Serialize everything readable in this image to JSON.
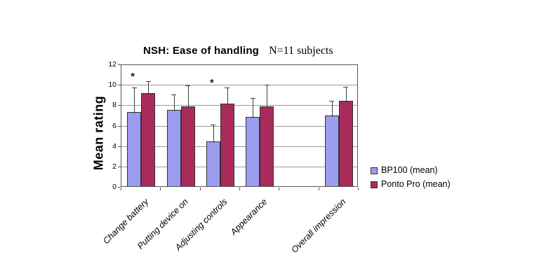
{
  "chart_data": {
    "type": "bar",
    "title": "NSH: Ease of handling",
    "subtitle": "N=11 subjects",
    "ylabel": "Mean rating",
    "ylim": [
      0,
      12
    ],
    "ytick_step": 2,
    "grid": true,
    "legend_position": "right",
    "categories": [
      "Change battery",
      "Putting device on",
      "Adjusting controls",
      "Appearance",
      "Overall impression"
    ],
    "num_slots": 6,
    "slot_of_category": [
      0,
      1,
      2,
      3,
      5
    ],
    "series": [
      {
        "name": "BP100 (mean)",
        "color": "#9C9CF0",
        "values": [
          7.3,
          7.5,
          4.4,
          6.8,
          6.9
        ],
        "error_top": [
          9.8,
          9.1,
          6.2,
          8.8,
          8.5
        ]
      },
      {
        "name": "Ponto Pro (mean)",
        "color": "#A82B5C",
        "values": [
          9.1,
          7.8,
          8.1,
          7.8,
          8.4
        ],
        "error_top": [
          10.4,
          10.0,
          9.8,
          10.1,
          9.9
        ]
      }
    ],
    "significance": {
      "symbol": "*",
      "category_indices": [
        0,
        2
      ],
      "marked_series": "Ponto Pro (mean)"
    }
  },
  "colors": {
    "background": "#FFFFFF",
    "plot_frame": "#555555",
    "gridline": "#9B9B9B",
    "bar_border": "#333333",
    "error_bar": "#3F3F3F",
    "text": "#000000"
  }
}
